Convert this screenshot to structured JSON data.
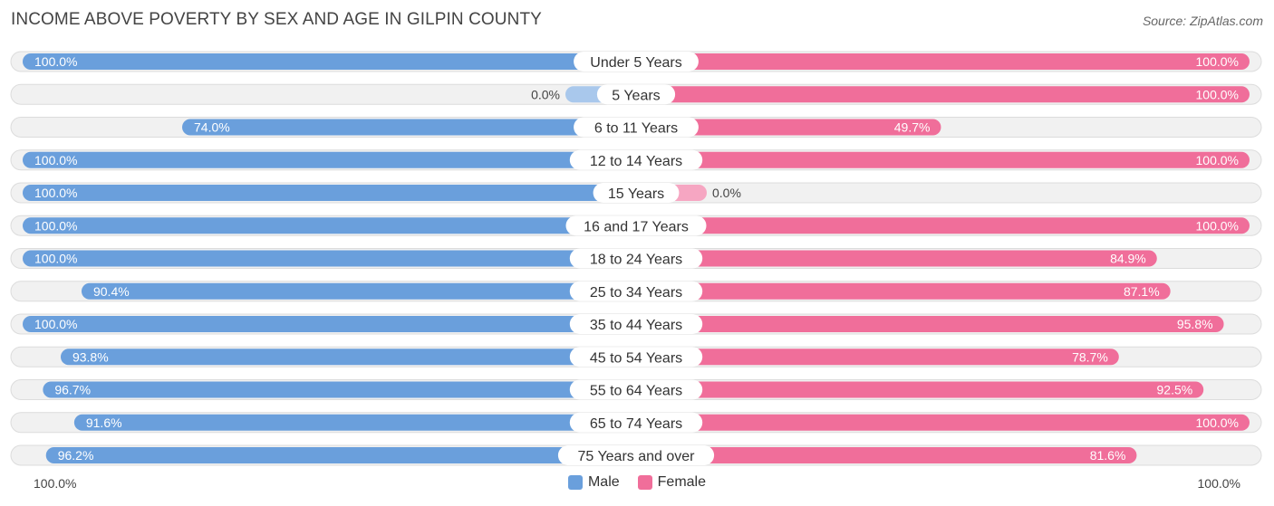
{
  "title": "INCOME ABOVE POVERTY BY SEX AND AGE IN GILPIN COUNTY",
  "source": "Source: ZipAtlas.com",
  "footer": {
    "left_value": "100.0%",
    "right_value": "100.0%"
  },
  "colors": {
    "male_strong": "#6a9fdc",
    "male_light": "#a9c8ec",
    "female_strong": "#f06e9a",
    "female_light": "#f6a6c2",
    "track": "#f1f1f1",
    "track_border": "#dcdcdc"
  },
  "chart_data": {
    "type": "bar",
    "orientation": "horizontal-diverging",
    "title": "INCOME ABOVE POVERTY BY SEX AND AGE IN GILPIN COUNTY",
    "xlim": [
      0,
      100
    ],
    "unit": "%",
    "categories": [
      "Under 5 Years",
      "5 Years",
      "6 to 11 Years",
      "12 to 14 Years",
      "15 Years",
      "16 and 17 Years",
      "18 to 24 Years",
      "25 to 34 Years",
      "35 to 44 Years",
      "45 to 54 Years",
      "55 to 64 Years",
      "65 to 74 Years",
      "75 Years and over"
    ],
    "series": [
      {
        "name": "Male",
        "values": [
          100.0,
          0.0,
          74.0,
          100.0,
          100.0,
          100.0,
          100.0,
          90.4,
          100.0,
          93.8,
          96.7,
          91.6,
          96.2
        ],
        "labels": [
          "100.0%",
          "0.0%",
          "74.0%",
          "100.0%",
          "100.0%",
          "100.0%",
          "100.0%",
          "90.4%",
          "100.0%",
          "93.8%",
          "96.7%",
          "91.6%",
          "96.2%"
        ]
      },
      {
        "name": "Female",
        "values": [
          100.0,
          100.0,
          49.7,
          100.0,
          0.0,
          100.0,
          84.9,
          87.1,
          95.8,
          78.7,
          92.5,
          100.0,
          81.6
        ],
        "labels": [
          "100.0%",
          "100.0%",
          "49.7%",
          "100.0%",
          "0.0%",
          "100.0%",
          "84.9%",
          "87.1%",
          "95.8%",
          "78.7%",
          "92.5%",
          "100.0%",
          "81.6%"
        ]
      }
    ],
    "legend": [
      "Male",
      "Female"
    ],
    "legend_position": "bottom-center"
  }
}
